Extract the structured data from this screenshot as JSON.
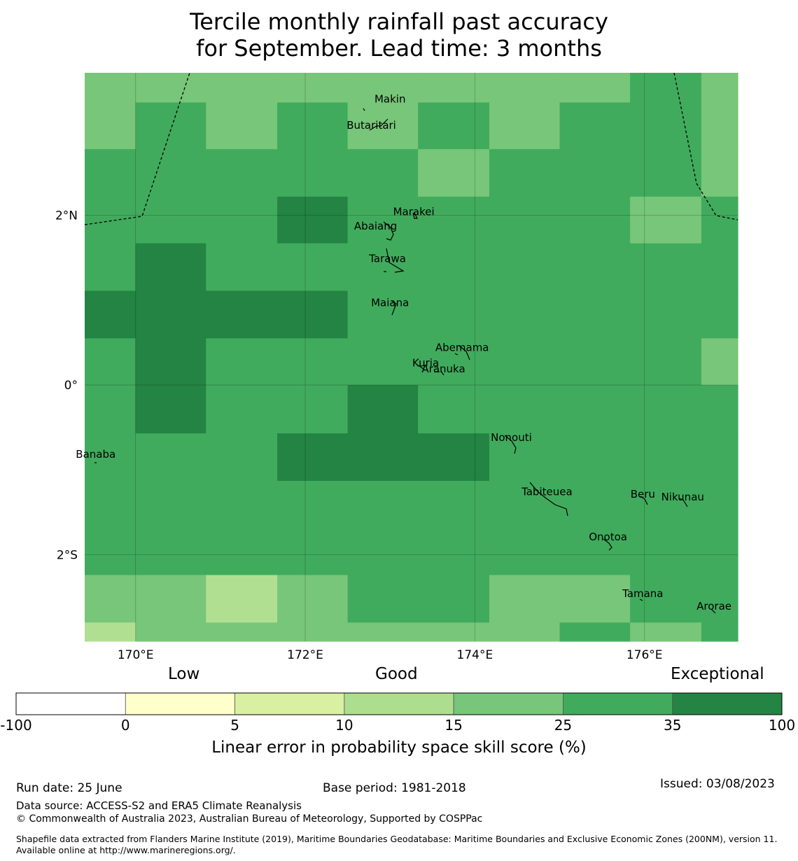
{
  "title_line1": "Tercile monthly rainfall past accuracy",
  "title_line2": "for September. Lead time: 3 months",
  "map": {
    "lon_range": [
      169.4,
      177.1
    ],
    "lat_range": [
      -3.02,
      3.68
    ],
    "lon_ticks": [
      {
        "value": 170,
        "label": "170°E"
      },
      {
        "value": 172,
        "label": "172°E"
      },
      {
        "value": 174,
        "label": "174°E"
      },
      {
        "value": 176,
        "label": "176°E"
      }
    ],
    "lat_ticks": [
      {
        "value": 2,
        "label": "2°N"
      },
      {
        "value": 0,
        "label": "0°"
      },
      {
        "value": -2,
        "label": "2°S"
      }
    ],
    "col_lon_edges": [
      169.4,
      170.0,
      170.83,
      171.67,
      172.5,
      173.33,
      174.17,
      175.0,
      175.83,
      176.67,
      177.1
    ],
    "row_lat_edges": [
      3.68,
      3.33,
      2.78,
      2.22,
      1.67,
      1.11,
      0.55,
      0.0,
      -0.57,
      -1.13,
      -1.68,
      -2.24,
      -2.8,
      -3.02
    ],
    "class_colors": {
      "c10": "#b1df92",
      "c15": "#78c679",
      "c25": "#41ab5d",
      "c35": "#238443"
    },
    "grid_classes": [
      [
        "c15",
        "c15",
        "c15",
        "c15",
        "c15",
        "c15",
        "c15",
        "c15",
        "c25",
        "c15"
      ],
      [
        "c15",
        "c25",
        "c15",
        "c25",
        "c15",
        "c25",
        "c15",
        "c25",
        "c25",
        "c15"
      ],
      [
        "c25",
        "c25",
        "c25",
        "c25",
        "c25",
        "c15",
        "c25",
        "c25",
        "c25",
        "c15"
      ],
      [
        "c25",
        "c25",
        "c25",
        "c35",
        "c25",
        "c25",
        "c25",
        "c25",
        "c15",
        "c25"
      ],
      [
        "c25",
        "c35",
        "c25",
        "c25",
        "c25",
        "c25",
        "c25",
        "c25",
        "c25",
        "c25"
      ],
      [
        "c35",
        "c35",
        "c35",
        "c35",
        "c25",
        "c25",
        "c25",
        "c25",
        "c25",
        "c25"
      ],
      [
        "c25",
        "c35",
        "c25",
        "c25",
        "c25",
        "c25",
        "c25",
        "c25",
        "c25",
        "c15"
      ],
      [
        "c25",
        "c35",
        "c25",
        "c25",
        "c35",
        "c25",
        "c25",
        "c25",
        "c25",
        "c25"
      ],
      [
        "c25",
        "c25",
        "c25",
        "c35",
        "c35",
        "c35",
        "c25",
        "c25",
        "c25",
        "c25"
      ],
      [
        "c25",
        "c25",
        "c25",
        "c25",
        "c25",
        "c25",
        "c25",
        "c25",
        "c25",
        "c25"
      ],
      [
        "c25",
        "c25",
        "c25",
        "c25",
        "c25",
        "c25",
        "c25",
        "c25",
        "c25",
        "c25"
      ],
      [
        "c15",
        "c15",
        "c10",
        "c15",
        "c25",
        "c25",
        "c15",
        "c15",
        "c25",
        "c25"
      ],
      [
        "c10",
        "c15",
        "c15",
        "c15",
        "c15",
        "c15",
        "c15",
        "c25",
        "c15",
        "c25"
      ]
    ],
    "islands": [
      {
        "name": "Makin",
        "lon": 173.0,
        "lat": 3.33
      },
      {
        "name": "Butaritari",
        "lon": 172.78,
        "lat": 3.02
      },
      {
        "name": "Marakei",
        "lon": 173.28,
        "lat": 2.0
      },
      {
        "name": "Abaiang",
        "lon": 172.83,
        "lat": 1.83
      },
      {
        "name": "Tarawa",
        "lon": 172.97,
        "lat": 1.45
      },
      {
        "name": "Maiana",
        "lon": 173.0,
        "lat": 0.93
      },
      {
        "name": "Abemama",
        "lon": 173.85,
        "lat": 0.4
      },
      {
        "name": "Kuria",
        "lon": 173.42,
        "lat": 0.22
      },
      {
        "name": "Aranuka",
        "lon": 173.63,
        "lat": 0.15
      },
      {
        "name": "Nonouti",
        "lon": 174.43,
        "lat": -0.66
      },
      {
        "name": "Banaba",
        "lon": 169.53,
        "lat": -0.86
      },
      {
        "name": "Tabiteuea",
        "lon": 174.85,
        "lat": -1.3
      },
      {
        "name": "Beru",
        "lon": 175.98,
        "lat": -1.33
      },
      {
        "name": "Nikunau",
        "lon": 176.45,
        "lat": -1.36
      },
      {
        "name": "Onotoa",
        "lon": 175.57,
        "lat": -1.83
      },
      {
        "name": "Tamana",
        "lon": 175.98,
        "lat": -2.5
      },
      {
        "name": "Arorae",
        "lon": 176.82,
        "lat": -2.65
      }
    ]
  },
  "legend": {
    "label_low": "Low",
    "label_good": "Good",
    "label_exceptional": "Exceptional",
    "bins": [
      {
        "from": "-100",
        "to": "0",
        "color": "#ffffff"
      },
      {
        "from": "0",
        "to": "5",
        "color": "#ffffcc"
      },
      {
        "from": "5",
        "to": "10",
        "color": "#d9f0a3"
      },
      {
        "from": "10",
        "to": "15",
        "color": "#addd8e"
      },
      {
        "from": "15",
        "to": "25",
        "color": "#78c679"
      },
      {
        "from": "25",
        "to": "35",
        "color": "#41ab5d"
      },
      {
        "from": "35",
        "to": "100",
        "color": "#238443"
      }
    ],
    "tick_labels": [
      "-100",
      "0",
      "5",
      "10",
      "15",
      "25",
      "35",
      "100"
    ],
    "axis_label": "Linear error in probability space skill score (%)"
  },
  "footer": {
    "run_date": "Run date: 25 June",
    "base_period": "Base period: 1981-2018",
    "issued": "Issued: 03/08/2023",
    "data_source": "Data source: ACCESS-S2 and ERA5 Climate Reanalysis",
    "copyright": "© Commonwealth of Australia 2023, Australian Bureau of Meteorology, Supported by COSPPac",
    "shapefile": "Shapefile data extracted from Flanders Marine Institute (2019), Maritime Boundaries Geodatabase: Maritime Boundaries and Exclusive Economic Zones (200NM), version 11. Available online at http://www.marineregions.org/."
  }
}
